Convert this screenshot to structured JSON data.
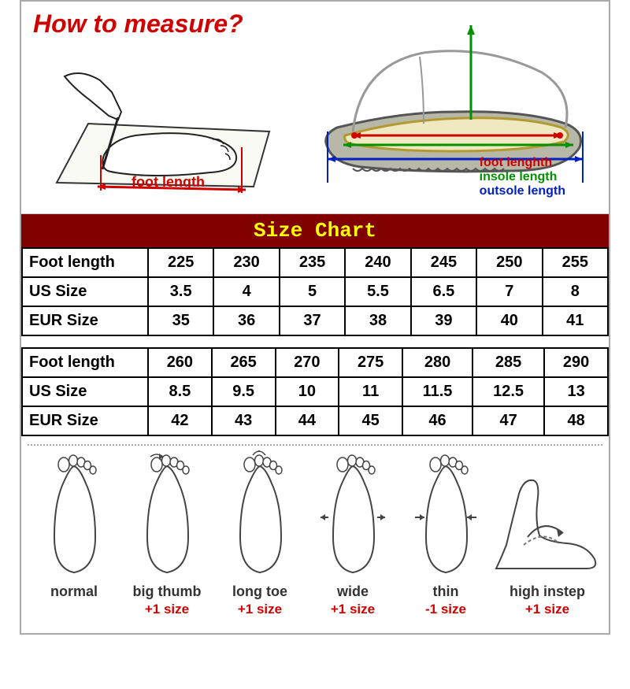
{
  "title": "How to measure?",
  "diagram_left_label": "foot length",
  "diagram_right_legend": {
    "foot": "foot lenghth",
    "insole": "insole length",
    "outsole": "outsole length"
  },
  "chart_header": "Size Chart",
  "chart_header_bg": "#800000",
  "chart_header_color": "#ffff00",
  "table1": {
    "rows": [
      {
        "label": "Foot length",
        "values": [
          "225",
          "230",
          "235",
          "240",
          "245",
          "250",
          "255"
        ]
      },
      {
        "label": "US Size",
        "values": [
          "3.5",
          "4",
          "5",
          "5.5",
          "6.5",
          "7",
          "8"
        ]
      },
      {
        "label": "EUR Size",
        "values": [
          "35",
          "36",
          "37",
          "38",
          "39",
          "40",
          "41"
        ]
      }
    ]
  },
  "table2": {
    "rows": [
      {
        "label": "Foot length",
        "values": [
          "260",
          "265",
          "270",
          "275",
          "280",
          "285",
          "290"
        ]
      },
      {
        "label": "US Size",
        "values": [
          "8.5",
          "9.5",
          "10",
          "11",
          "11.5",
          "12.5",
          "13"
        ]
      },
      {
        "label": "EUR Size",
        "values": [
          "42",
          "43",
          "44",
          "45",
          "46",
          "47",
          "48"
        ]
      }
    ]
  },
  "foot_types": [
    {
      "label": "normal",
      "adjust": ""
    },
    {
      "label": "big thumb",
      "adjust": "+1 size"
    },
    {
      "label": "long toe",
      "adjust": "+1 size"
    },
    {
      "label": "wide",
      "adjust": "+1 size"
    },
    {
      "label": "thin",
      "adjust": "-1 size"
    },
    {
      "label": "high instep",
      "adjust": "+1 size"
    }
  ],
  "colors": {
    "red": "#d00000",
    "green": "#009000",
    "blue": "#0020c0",
    "border": "#000000",
    "bg": "#ffffff"
  },
  "table_fontsize": 20,
  "title_fontsize": 32
}
